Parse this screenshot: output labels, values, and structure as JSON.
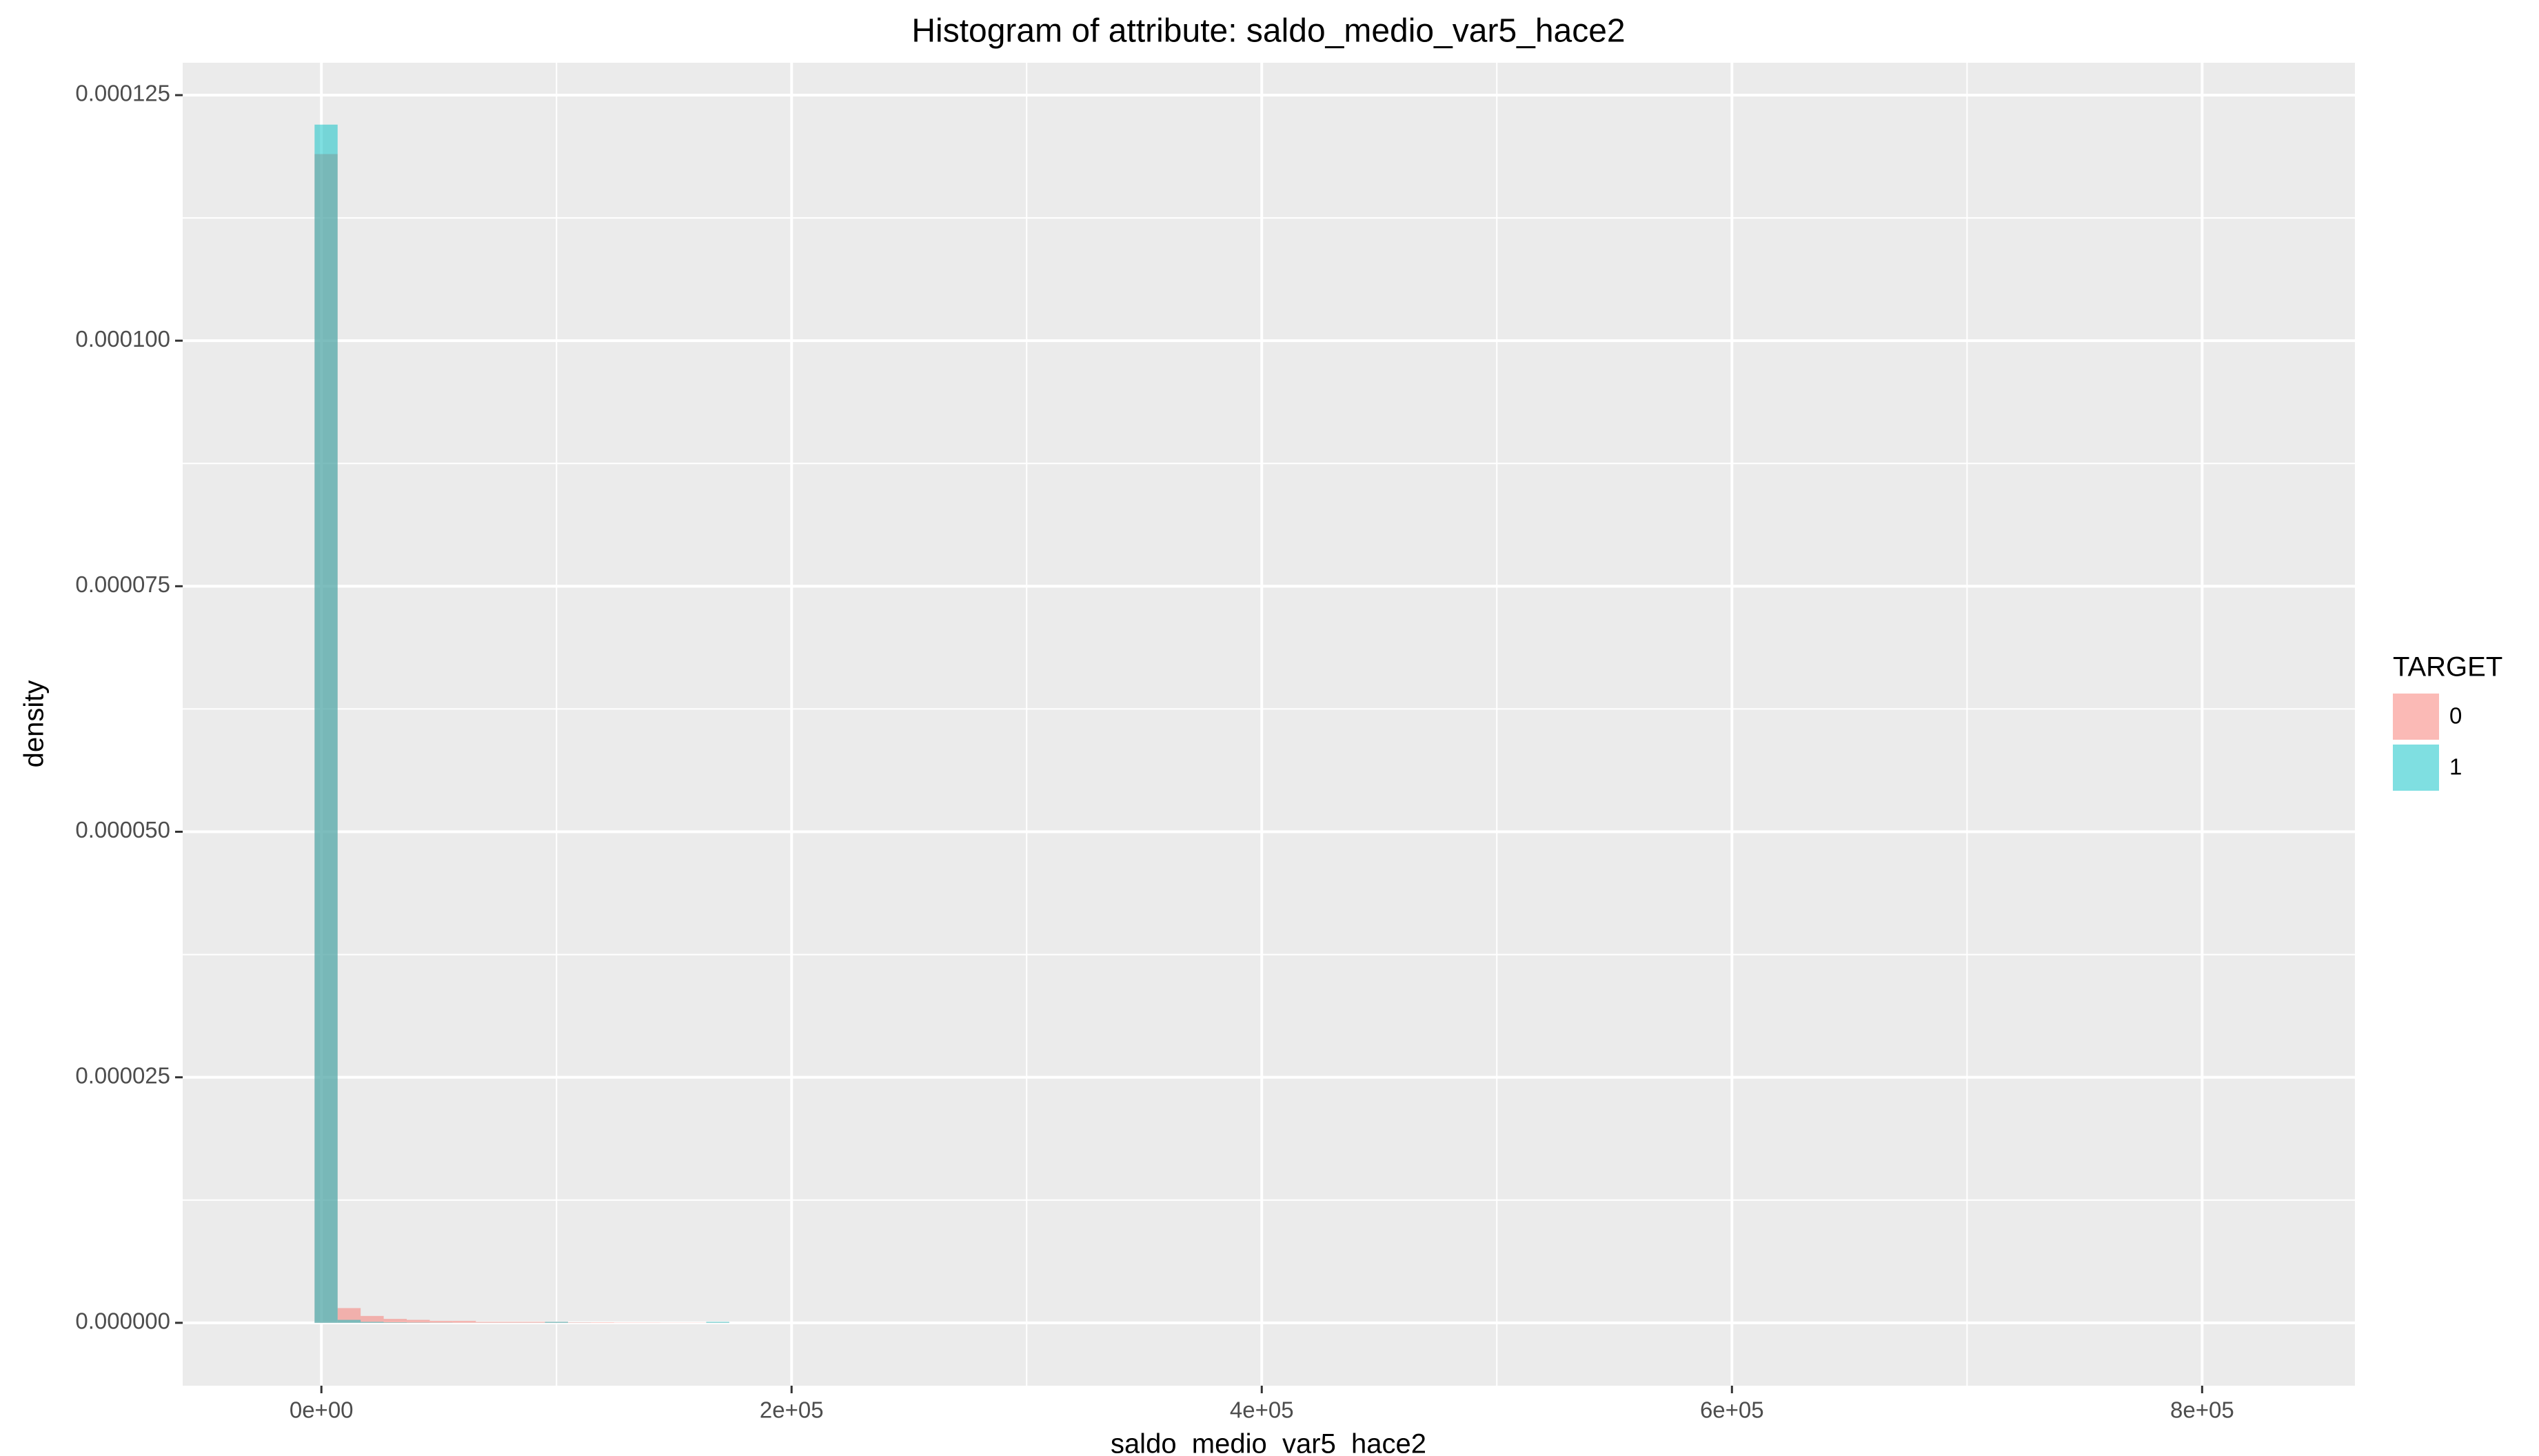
{
  "chart_data": {
    "type": "histogram",
    "title": "Histogram of attribute: saldo_medio_var5_hace2",
    "x_label": "saldo_medio_var5_hace2",
    "y_label": "density",
    "legend_title": "TARGET",
    "legend_position": "right",
    "grid": true,
    "opacity": 0.5,
    "bins": [
      -2900,
      6900,
      16700,
      26500,
      36300,
      46100,
      55900,
      65700,
      75500,
      85300,
      95100,
      104900,
      114700,
      124500,
      134300,
      144100,
      153900,
      163700,
      173500
    ],
    "series": [
      {
        "name": "0",
        "color": "#F8766D",
        "values": [
          0.000119,
          1.5e-06,
          7e-07,
          4e-07,
          3e-07,
          2e-07,
          2e-07,
          1e-07,
          1e-07,
          1e-07,
          1e-07,
          5e-08,
          5e-08,
          3e-08,
          3e-08,
          2e-08,
          2e-08,
          3e-08
        ]
      },
      {
        "name": "1",
        "color": "#00BFC4",
        "values": [
          0.000122,
          3e-07,
          1e-07,
          5e-08,
          3e-08,
          2e-08,
          1e-08,
          1e-08,
          1e-08,
          1e-08,
          1e-07,
          1e-08,
          0,
          0,
          0,
          0,
          0,
          1e-07
        ]
      }
    ],
    "xlim": [
      -59000,
      865000
    ],
    "ylim": [
      -6.4e-06,
      0.0001283
    ],
    "xticks": [
      {
        "value": 0,
        "label": "0e+00"
      },
      {
        "value": 200000,
        "label": "2e+05"
      },
      {
        "value": 400000,
        "label": "4e+05"
      },
      {
        "value": 600000,
        "label": "6e+05"
      },
      {
        "value": 800000,
        "label": "8e+05"
      }
    ],
    "yticks": [
      {
        "value": 0,
        "label": "0.000000"
      },
      {
        "value": 2.5e-05,
        "label": "0.000025"
      },
      {
        "value": 5e-05,
        "label": "0.000050"
      },
      {
        "value": 7.5e-05,
        "label": "0.000075"
      },
      {
        "value": 0.0001,
        "label": "0.000100"
      },
      {
        "value": 0.000125,
        "label": "0.000125"
      }
    ]
  }
}
